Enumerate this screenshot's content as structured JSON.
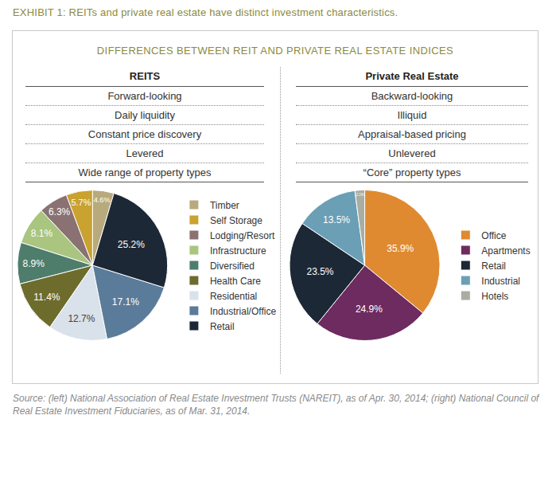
{
  "exhibit_title": "EXHIBIT 1: REITs and private real estate have distinct investment characteristics.",
  "panel_title": "DIFFERENCES BETWEEN REIT AND PRIVATE REAL ESTATE INDICES",
  "comparison": {
    "columns": [
      "REITS",
      "Private Real Estate"
    ],
    "rows": [
      [
        "Forward-looking",
        "Backward-looking"
      ],
      [
        "Daily liquidity",
        "Illiquid"
      ],
      [
        "Constant price discovery",
        "Appraisal-based pricing"
      ],
      [
        "Levered",
        "Unlevered"
      ],
      [
        "Wide range of property types",
        "“Core” property types"
      ]
    ]
  },
  "chart_data": [
    {
      "type": "pie",
      "categories": [
        "Timber",
        "Self Storage",
        "Lodging/Resort",
        "Infrastructure",
        "Diversified",
        "Health Care",
        "Residential",
        "Industrial/Office",
        "Retail"
      ],
      "values": [
        4.6,
        5.7,
        6.3,
        8.1,
        8.9,
        11.4,
        12.7,
        17.1,
        25.2
      ],
      "value_labels": [
        "4.6%",
        "5.7%",
        "6.3%",
        "8.1%",
        "8.9%",
        "11.4%",
        "12.7%",
        "17.1%",
        "25.2%"
      ],
      "colors": [
        "#b8aa7c",
        "#c9a230",
        "#8a7272",
        "#a9c57f",
        "#4f7d6b",
        "#6e6c2c",
        "#d9e1ea",
        "#5b7b9a",
        "#1d2836"
      ],
      "data_labels": true,
      "legend": "right"
    },
    {
      "type": "pie",
      "categories": [
        "Office",
        "Apartments",
        "Retail",
        "Industrial",
        "Hotels"
      ],
      "values": [
        35.9,
        24.9,
        23.5,
        13.5,
        2.1
      ],
      "value_labels": [
        "35.9%",
        "24.9%",
        "23.5%",
        "13.5%",
        "2.1%"
      ],
      "colors": [
        "#df8a30",
        "#6d2b5f",
        "#1d2836",
        "#6a9fb6",
        "#a9ada2"
      ],
      "data_labels": true,
      "legend": "right"
    }
  ],
  "source": "Source: (left) National Association of Real Estate Investment Trusts (NAREIT), as of Apr. 30, 2014; (right) National Council of Real Estate Investment Fiduciaries, as of Mar. 31, 2014."
}
